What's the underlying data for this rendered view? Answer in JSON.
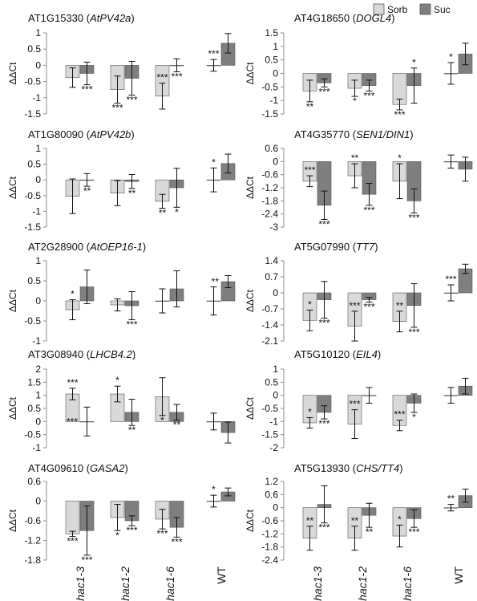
{
  "colors": {
    "sorb": "#d9d9d9",
    "suc": "#7f7f7f",
    "edge": "#555555",
    "axis": "#8c8c8c"
  },
  "legend": [
    {
      "name": "Sorb"
    },
    {
      "name": "Suc"
    }
  ],
  "chart_data": [
    {
      "type": "bar",
      "title": {
        "pre": "AT1G15330 (",
        "gene": "AtPV42a",
        "post": ")"
      },
      "ylabel": "ΔΔCt",
      "ylim": [
        -1.5,
        1.0
      ],
      "yticks": [
        1,
        0.5,
        0,
        -0.5,
        -1,
        -1.5
      ],
      "yticklabels": [
        "1",
        "0.5",
        "0",
        "-0.5",
        "-1",
        "-1.5"
      ],
      "categories": [
        "hac1-3",
        "hac1-2",
        "hac1-6",
        "WT"
      ],
      "series": [
        {
          "name": "Sorb",
          "values": [
            -0.38,
            -0.75,
            -0.95,
            0.0
          ],
          "err": [
            0.3,
            0.42,
            0.4,
            0.18
          ],
          "sig": [
            "",
            "***",
            "***",
            "***"
          ],
          "sig_pos": [
            "",
            "below",
            "above",
            "above"
          ]
        },
        {
          "name": "Suc",
          "values": [
            -0.25,
            -0.4,
            0.0,
            0.68
          ],
          "err": [
            0.35,
            0.52,
            0.2,
            0.3
          ],
          "sig": [
            "***",
            "***",
            "***",
            ""
          ],
          "sig_pos": [
            "below",
            "below",
            "below",
            ""
          ]
        }
      ]
    },
    {
      "type": "bar",
      "title": {
        "pre": "AT4G18650 (",
        "gene": "DOGL4",
        "post": ")"
      },
      "ylabel": "ΔΔCt",
      "ylim": [
        -1.5,
        1.5
      ],
      "yticks": [
        1.5,
        1,
        0.5,
        0,
        -0.5,
        -1,
        -1.5
      ],
      "yticklabels": [
        "1.5",
        "1",
        "0.5",
        "0",
        "-0.5",
        "-1",
        "-1.5"
      ],
      "categories": [
        "hac1-3",
        "hac1-2",
        "hac1-6",
        "WT"
      ],
      "series": [
        {
          "name": "Sorb",
          "values": [
            -0.65,
            -0.55,
            -1.15,
            0.0
          ],
          "err": [
            0.4,
            0.3,
            0.2,
            0.4
          ],
          "sig": [
            "**",
            "*",
            "***",
            "*"
          ],
          "sig_pos": [
            "below",
            "below",
            "below",
            "above"
          ]
        },
        {
          "name": "Suc",
          "values": [
            -0.35,
            -0.45,
            -0.45,
            0.72
          ],
          "err": [
            0.15,
            0.2,
            0.65,
            0.4
          ],
          "sig": [
            "***",
            "***",
            "*",
            ""
          ],
          "sig_pos": [
            "below",
            "below",
            "above",
            ""
          ]
        }
      ]
    },
    {
      "type": "bar",
      "title": {
        "pre": "AT1G80090 (",
        "gene": "AtPV42b",
        "post": ")"
      },
      "ylabel": "ΔΔCt",
      "ylim": [
        -1.5,
        1.0
      ],
      "yticks": [
        1,
        0.5,
        0,
        -0.5,
        -1,
        -1.5
      ],
      "yticklabels": [
        "1",
        "0.5",
        "0",
        "-0.5",
        "-1",
        "-1.5"
      ],
      "categories": [
        "hac1-3",
        "hac1-2",
        "hac1-6",
        "WT"
      ],
      "series": [
        {
          "name": "Sorb",
          "values": [
            -0.52,
            -0.42,
            -0.68,
            0.0
          ],
          "err": [
            0.55,
            0.4,
            0.22,
            0.38
          ],
          "sig": [
            "",
            "",
            "**",
            "*"
          ],
          "sig_pos": [
            "",
            "",
            "below",
            "above"
          ]
        },
        {
          "name": "Suc",
          "values": [
            0.0,
            -0.05,
            -0.25,
            0.52
          ],
          "err": [
            0.2,
            0.22,
            0.62,
            0.3
          ],
          "sig": [
            "**",
            "**",
            "*",
            ""
          ],
          "sig_pos": [
            "below",
            "below",
            "below",
            ""
          ]
        }
      ]
    },
    {
      "type": "bar",
      "title": {
        "pre": "AT4G35770 (",
        "gene": "SEN1/DIN1",
        "post": ")"
      },
      "ylabel": "ΔΔCt",
      "ylim": [
        -3.0,
        0.6
      ],
      "yticks": [
        0.6,
        0,
        -0.6,
        -1.2,
        -1.8,
        -2.4,
        -3
      ],
      "yticklabels": [
        "0.6",
        "0",
        "-0.6",
        "-1.2",
        "-1.8",
        "-2.4",
        "-3"
      ],
      "categories": [
        "hac1-3",
        "hac1-2",
        "hac1-6",
        "WT"
      ],
      "series": [
        {
          "name": "Sorb",
          "values": [
            -0.9,
            -0.65,
            -0.9,
            0.0
          ],
          "err": [
            0.25,
            0.55,
            0.8,
            0.3
          ],
          "sig": [
            "***",
            "**",
            "*",
            ""
          ],
          "sig_pos": [
            "above",
            "above",
            "above",
            ""
          ]
        },
        {
          "name": "Suc",
          "values": [
            -2.0,
            -1.5,
            -1.8,
            -0.35
          ],
          "err": [
            0.65,
            0.5,
            0.55,
            0.55
          ],
          "sig": [
            "***",
            "***",
            "***",
            ""
          ],
          "sig_pos": [
            "below",
            "below",
            "below",
            ""
          ]
        }
      ]
    },
    {
      "type": "bar",
      "title": {
        "pre": "AT2G28900 (",
        "gene": "AtOEP16-1",
        "post": ")"
      },
      "ylabel": "ΔΔCt",
      "ylim": [
        -1.0,
        1.0
      ],
      "yticks": [
        1,
        0.5,
        0,
        -0.5,
        -1
      ],
      "yticklabels": [
        "1",
        "0.5",
        "0",
        "-0.5",
        "-1"
      ],
      "categories": [
        "hac1-3",
        "hac1-2",
        "hac1-6",
        "WT"
      ],
      "series": [
        {
          "name": "Sorb",
          "values": [
            -0.22,
            -0.1,
            0.0,
            0.0
          ],
          "err": [
            0.25,
            0.15,
            0.3,
            0.35
          ],
          "sig": [
            "*",
            "",
            "",
            ""
          ],
          "sig_pos": [
            "above",
            "",
            "",
            ""
          ]
        },
        {
          "name": "Suc",
          "values": [
            0.35,
            -0.12,
            0.3,
            0.48
          ],
          "err": [
            0.42,
            0.35,
            0.45,
            0.15
          ],
          "sig": [
            "",
            "***",
            "",
            "**"
          ],
          "sig_pos": [
            "",
            "below",
            "",
            "left"
          ]
        }
      ]
    },
    {
      "type": "bar",
      "title": {
        "pre": "AT5G07990 (",
        "gene": "TT7",
        "post": ")"
      },
      "ylabel": "ΔΔCt",
      "ylim": [
        -2.1,
        1.4
      ],
      "yticks": [
        1.4,
        0.7,
        0,
        -0.7,
        -1.4,
        -2.1
      ],
      "yticklabels": [
        "1.4",
        "0.7",
        "0",
        "-0.7",
        "-1.4",
        "-2.1"
      ],
      "categories": [
        "hac1-3",
        "hac1-2",
        "hac1-6",
        "WT"
      ],
      "series": [
        {
          "name": "Sorb",
          "values": [
            -1.2,
            -1.45,
            -1.25,
            0.0
          ],
          "err": [
            0.45,
            0.65,
            0.45,
            0.35
          ],
          "sig": [
            "*",
            "***",
            "**",
            "***"
          ],
          "sig_pos": [
            "above",
            "above",
            "above",
            "above"
          ]
        },
        {
          "name": "Suc",
          "values": [
            -0.3,
            -0.3,
            -0.55,
            1.05
          ],
          "err": [
            0.8,
            0.1,
            0.95,
            0.2
          ],
          "sig": [
            "***",
            "***",
            "***",
            ""
          ],
          "sig_pos": [
            "below",
            "below",
            "below",
            ""
          ]
        }
      ]
    },
    {
      "type": "bar",
      "title": {
        "pre": "AT3G08940 (",
        "gene": "LHCB4.2",
        "post": ")"
      },
      "ylabel": "ΔΔCt",
      "ylim": [
        -1.0,
        2.0
      ],
      "yticks": [
        2,
        1.5,
        1,
        0.5,
        0,
        -0.5,
        -1
      ],
      "yticklabels": [
        "2",
        "1.5",
        "1",
        "0.5",
        "0",
        "-0.5",
        "-1"
      ],
      "categories": [
        "hac1-3",
        "hac1-2",
        "hac1-6",
        "WT"
      ],
      "series": [
        {
          "name": "Sorb",
          "values": [
            1.05,
            1.05,
            0.95,
            0.0
          ],
          "err": [
            0.22,
            0.3,
            0.72,
            0.32
          ],
          "sig": [
            "***",
            "*",
            "*",
            ""
          ],
          "sig_pos": [
            "above",
            "above",
            "below",
            ""
          ]
        },
        {
          "name": "Suc",
          "values": [
            0.0,
            0.35,
            0.35,
            -0.42
          ],
          "err": [
            0.55,
            0.5,
            0.3,
            0.4
          ],
          "sig": [
            "***",
            "**",
            "**",
            ""
          ],
          "sig_pos": [
            "left",
            "below",
            "below",
            ""
          ]
        }
      ]
    },
    {
      "type": "bar",
      "title": {
        "pre": "AT5G10120 (",
        "gene": "EIL4",
        "post": ")"
      },
      "ylabel": "ΔΔCt",
      "ylim": [
        -2.0,
        1.0
      ],
      "yticks": [
        1,
        0.5,
        0,
        -0.5,
        -1,
        -1.5,
        -2
      ],
      "yticklabels": [
        "1",
        "0.5",
        "0",
        "-0.5",
        "-1",
        "-1.5",
        "-2"
      ],
      "categories": [
        "hac1-3",
        "hac1-2",
        "hac1-6",
        "WT"
      ],
      "series": [
        {
          "name": "Sorb",
          "values": [
            -1.05,
            -1.1,
            -1.15,
            0.0
          ],
          "err": [
            0.2,
            0.55,
            0.2,
            0.3
          ],
          "sig": [
            "*",
            "***",
            "***",
            ""
          ],
          "sig_pos": [
            "above",
            "above",
            "above",
            ""
          ]
        },
        {
          "name": "Suc",
          "values": [
            -0.65,
            0.0,
            -0.3,
            0.35
          ],
          "err": [
            0.25,
            0.3,
            0.35,
            0.3
          ],
          "sig": [
            "***",
            "",
            "*",
            ""
          ],
          "sig_pos": [
            "below",
            "",
            "below",
            ""
          ]
        }
      ]
    },
    {
      "type": "bar",
      "title": {
        "pre": "AT4G09610 (",
        "gene": "GASA2",
        "post": ")"
      },
      "ylabel": "ΔΔCt",
      "ylim": [
        -1.8,
        0.6
      ],
      "yticks": [
        0.6,
        0,
        -0.6,
        -1.2,
        -1.8
      ],
      "yticklabels": [
        "0.6",
        "0",
        "-0.6",
        "-1.2",
        "-1.8"
      ],
      "categories": [
        "hac1-3",
        "hac1-2",
        "hac1-6",
        "WT"
      ],
      "series": [
        {
          "name": "Sorb",
          "values": [
            -1.0,
            -0.5,
            -0.55,
            0.0
          ],
          "err": [
            0.08,
            0.4,
            0.3,
            0.18
          ],
          "sig": [
            "***",
            "*",
            "***",
            "*"
          ],
          "sig_pos": [
            "below",
            "below",
            "below",
            "above"
          ]
        },
        {
          "name": "Suc",
          "values": [
            -0.9,
            -0.6,
            -0.8,
            0.28
          ],
          "err": [
            0.75,
            0.15,
            0.3,
            0.12
          ],
          "sig": [
            "***",
            "***",
            "***",
            ""
          ],
          "sig_pos": [
            "below",
            "below",
            "below",
            ""
          ]
        }
      ]
    },
    {
      "type": "bar",
      "title": {
        "pre": "AT5G13930 (",
        "gene": "CHS/TT4",
        "post": ")"
      },
      "ylabel": "ΔΔCt",
      "ylim": [
        -2.4,
        1.2
      ],
      "yticks": [
        1.2,
        0.6,
        0,
        -0.6,
        -1.2,
        -1.8,
        -2.4
      ],
      "yticklabels": [
        "1.2",
        "0.6",
        "0",
        "-0.6",
        "-1.2",
        "-1.8",
        "-2.4"
      ],
      "categories": [
        "hac1-3",
        "hac1-2",
        "hac1-6",
        "WT"
      ],
      "series": [
        {
          "name": "Sorb",
          "values": [
            -1.4,
            -1.4,
            -1.3,
            0.0
          ],
          "err": [
            0.55,
            0.55,
            0.5,
            0.15
          ],
          "sig": [
            "**",
            "**",
            "*",
            "**"
          ],
          "sig_pos": [
            "above",
            "above",
            "above",
            "above"
          ]
        },
        {
          "name": "Suc",
          "values": [
            0.15,
            -0.35,
            -0.5,
            0.55
          ],
          "err": [
            0.85,
            0.55,
            0.4,
            0.3
          ],
          "sig": [
            "***",
            "**",
            "***",
            ""
          ],
          "sig_pos": [
            "below",
            "below",
            "below",
            ""
          ]
        }
      ]
    }
  ]
}
